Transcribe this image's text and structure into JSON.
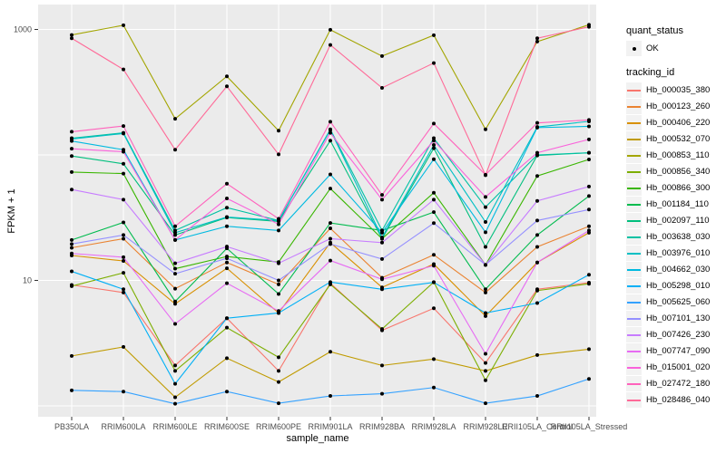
{
  "figure": {
    "y_axis_title": "FPKM + 1",
    "x_axis_title": "sample_name",
    "legend": {
      "quant_status_title": "quant_status",
      "quant_status_ok_label": "OK",
      "tracking_id_title": "tracking_id"
    }
  },
  "chart_data": {
    "type": "line",
    "title": "",
    "xlabel": "sample_name",
    "ylabel": "FPKM + 1",
    "y_scale": "log10",
    "ylim": [
      0.9,
      1500
    ],
    "y_tick_labels": [
      "1000",
      "10"
    ],
    "y_tick_values": [
      1000,
      10
    ],
    "y_gridline_values": [
      1000,
      100,
      10,
      1
    ],
    "grid": "on",
    "legend_position": "right",
    "panel_background": "#EBEBEB",
    "gridline_color": "#FFFFFF",
    "point_color": "#000000",
    "tick_color": "#333333",
    "tick_label_color": "#4D4D4D",
    "quant_status": "OK",
    "categories": [
      "PB350LA",
      "RRIM600LA",
      "RRIM600LE",
      "RRIM600SE",
      "RRIM600PE",
      "RRIM901LA",
      "RRIM928BA",
      "RRIM928LA",
      "RRIM928LE",
      "RRII105LA_Control",
      "RRII105LA_Stressed"
    ],
    "series": [
      {
        "name": "Hb_000035_380",
        "color": "#F8766D",
        "values": [
          9.2,
          8.0,
          2.1,
          5.0,
          1.9,
          9.5,
          4.0,
          6.0,
          2.2,
          8.5,
          9.6
        ]
      },
      {
        "name": "Hb_000123_260",
        "color": "#EA8331",
        "values": [
          18.2,
          21.5,
          8.6,
          13.9,
          9.3,
          26,
          10.5,
          16,
          8.0,
          18.5,
          27
        ]
      },
      {
        "name": "Hb_000406_220",
        "color": "#D89000",
        "values": [
          15.8,
          14.3,
          6.5,
          12.5,
          5.5,
          20,
          8.8,
          13.5,
          5.2,
          13.9,
          24
        ]
      },
      {
        "name": "Hb_000532_070",
        "color": "#C09B00",
        "values": [
          2.5,
          2.95,
          1.17,
          2.4,
          1.55,
          2.7,
          2.1,
          2.36,
          1.9,
          2.54,
          2.83
        ]
      },
      {
        "name": "Hb_000853_110",
        "color": "#A3A500",
        "values": [
          904,
          1080,
          194,
          423,
          156,
          993,
          613,
          900,
          160,
          800,
          1090
        ]
      },
      {
        "name": "Hb_000856_340",
        "color": "#7CAE00",
        "values": [
          9.0,
          11.5,
          1.9,
          4.2,
          2.44,
          9.3,
          4.1,
          9.7,
          1.6,
          8.3,
          9.4
        ]
      },
      {
        "name": "Hb_000866_300",
        "color": "#39B600",
        "values": [
          73,
          71,
          12.4,
          15.5,
          14.0,
          54,
          21.5,
          50,
          13.3,
          68,
          92
        ]
      },
      {
        "name": "Hb_001184_110",
        "color": "#00BB4E",
        "values": [
          21,
          29,
          6.8,
          18,
          7.8,
          28.7,
          25,
          35,
          8.5,
          23,
          47
        ]
      },
      {
        "name": "Hb_002097_110",
        "color": "#00BF7D",
        "values": [
          98,
          85,
          23,
          31.7,
          29.5,
          130,
          21.5,
          113,
          18.5,
          99,
          104
        ]
      },
      {
        "name": "Hb_003638_030",
        "color": "#00C1A3",
        "values": [
          136,
          150,
          25,
          38,
          30,
          160,
          25,
          136,
          38.4,
          100,
          104
        ]
      },
      {
        "name": "Hb_003976_010",
        "color": "#00BFC4",
        "values": [
          134,
          148,
          24,
          32,
          30,
          158,
          22,
          120,
          29.2,
          167,
          185
        ]
      },
      {
        "name": "Hb_004662_030",
        "color": "#00BAE0",
        "values": [
          129,
          110,
          21,
          27,
          25,
          70,
          24,
          92.5,
          24.2,
          165,
          169
        ]
      },
      {
        "name": "Hb_005298_010",
        "color": "#00B0F6",
        "values": [
          11.8,
          8.5,
          1.5,
          5.0,
          5.5,
          9.7,
          8.5,
          9.65,
          5.5,
          6.6,
          11.1
        ]
      },
      {
        "name": "Hb_005625_060",
        "color": "#35A2FF",
        "values": [
          1.33,
          1.3,
          1.04,
          1.3,
          1.05,
          1.2,
          1.25,
          1.4,
          1.05,
          1.2,
          1.64
        ]
      },
      {
        "name": "Hb_007101_130",
        "color": "#9590FF",
        "values": [
          19.5,
          23,
          11.3,
          15,
          10,
          19.5,
          14.8,
          28.6,
          13.3,
          30,
          36.7
        ]
      },
      {
        "name": "Hb_007426_230",
        "color": "#C77CFF",
        "values": [
          53,
          44,
          13.7,
          18.6,
          13.7,
          21.5,
          20,
          44,
          13.3,
          43,
          56
        ]
      },
      {
        "name": "Hb_007747_090",
        "color": "#E76BF3",
        "values": [
          16.4,
          15.3,
          4.5,
          9.5,
          5.7,
          14.4,
          10.2,
          13.1,
          2.6,
          13.9,
          25
        ]
      },
      {
        "name": "Hb_015001_020",
        "color": "#FA62DB",
        "values": [
          112,
          106,
          21,
          45,
          28,
          150,
          44,
          130,
          46.3,
          104,
          133
        ]
      },
      {
        "name": "Hb_027472_180",
        "color": "#FF62BC",
        "values": [
          153,
          170,
          27,
          59,
          31,
          184,
          48,
          178,
          69.5,
          180,
          190
        ]
      },
      {
        "name": "Hb_028486_040",
        "color": "#FF6A98",
        "values": [
          850,
          480,
          110,
          352,
          101,
          753,
          342,
          540,
          69,
          850,
          1050
        ]
      }
    ]
  }
}
